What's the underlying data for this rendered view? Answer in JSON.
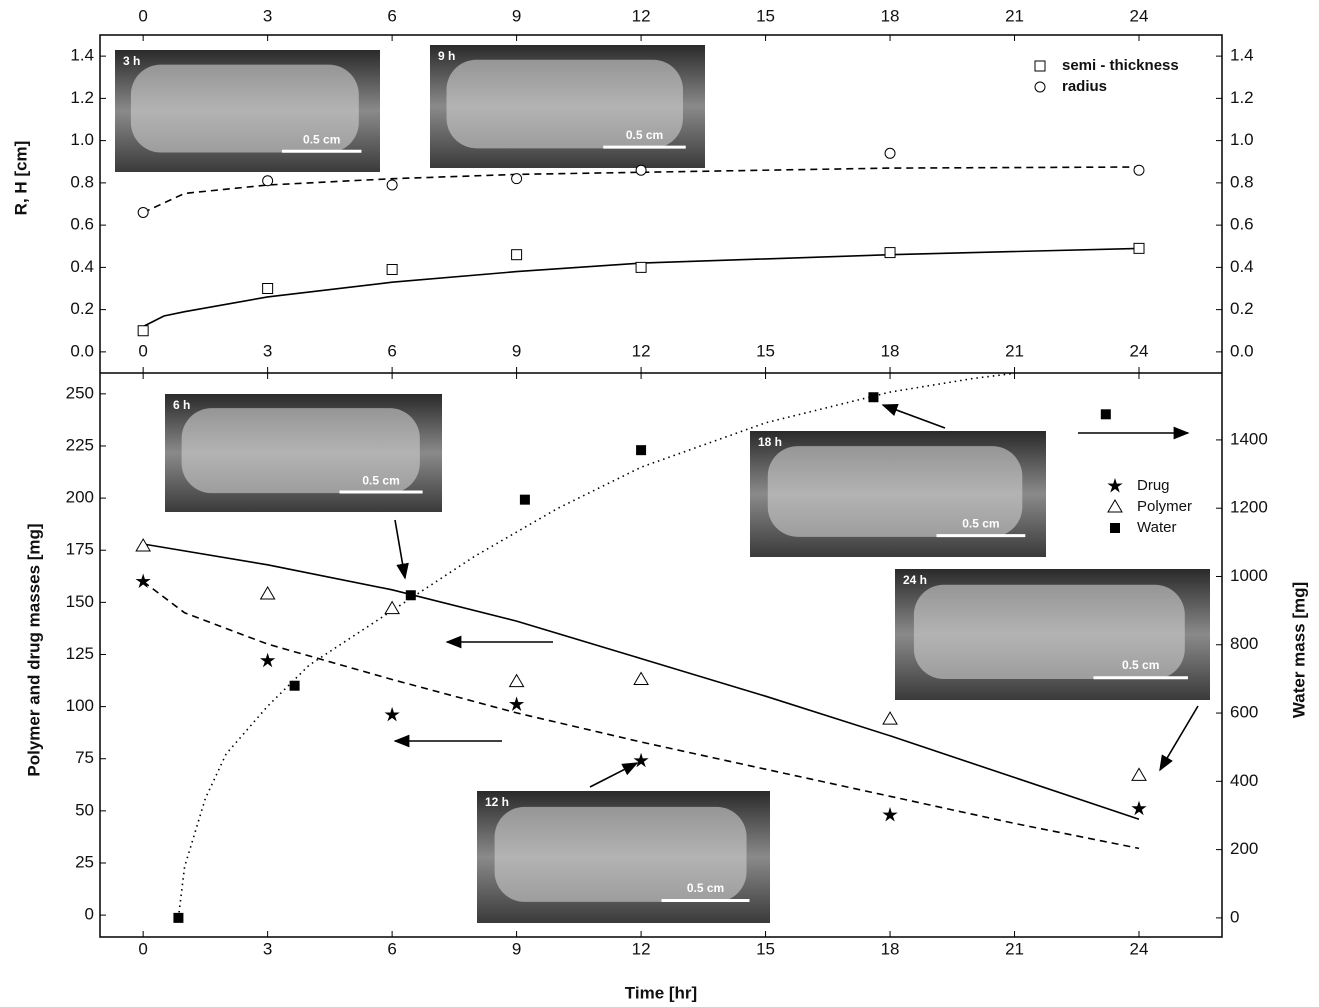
{
  "chart_data": [
    {
      "type": "scatter",
      "ylabel": "R, H [cm]",
      "xlim": [
        -1.04,
        26
      ],
      "xticks": [
        0,
        3,
        6,
        9,
        12,
        15,
        18,
        21,
        24
      ],
      "ylim": [
        -0.1,
        1.5
      ],
      "yticks": [
        {
          "value": 0,
          "label": "0.0"
        },
        {
          "value": 0.2,
          "label": "0.2"
        },
        {
          "value": 0.4,
          "label": "0.4"
        },
        {
          "value": 0.6,
          "label": "0.6"
        },
        {
          "value": 0.8,
          "label": "0.8"
        },
        {
          "value": 1,
          "label": "1.0"
        },
        {
          "value": 1.2,
          "label": "1.2"
        },
        {
          "value": 1.4,
          "label": "1.4"
        }
      ],
      "legend": "top-right",
      "series": [
        {
          "name": "semi - thickness",
          "marker": "square-open",
          "color": "#000",
          "x": [
            0,
            3,
            6,
            9,
            12,
            18,
            24
          ],
          "values": [
            0.1,
            0.3,
            0.39,
            0.46,
            0.4,
            0.47,
            0.49
          ]
        },
        {
          "name": "radius",
          "marker": "circle-open",
          "color": "#000",
          "x": [
            0,
            3,
            6,
            9,
            12,
            18,
            24
          ],
          "values": [
            0.66,
            0.81,
            0.79,
            0.82,
            0.86,
            0.94,
            0.86
          ]
        }
      ],
      "fits": [
        {
          "style": "solid",
          "x": [
            0,
            0.5,
            1,
            3,
            6,
            9,
            12,
            18,
            24
          ],
          "values": [
            0.12,
            0.17,
            0.19,
            0.26,
            0.33,
            0.38,
            0.42,
            0.46,
            0.49
          ]
        },
        {
          "style": "dashed",
          "x": [
            0,
            1,
            3,
            6,
            9,
            12,
            18,
            24
          ],
          "values": [
            0.66,
            0.75,
            0.79,
            0.82,
            0.84,
            0.85,
            0.87,
            0.875
          ]
        }
      ],
      "insets": [
        {
          "label": "3 h",
          "scale": "0.5 cm"
        },
        {
          "label": "9 h",
          "scale": "0.5 cm"
        }
      ]
    },
    {
      "type": "scatter",
      "ylabel": "Polymer and drug masses [mg]",
      "y2label": "Water mass [mg]",
      "xlabel": "Time [hr]",
      "xlim": [
        -1.04,
        26
      ],
      "xticks": [
        0,
        3,
        6,
        9,
        12,
        15,
        18,
        21,
        24
      ],
      "ylim": [
        -10.5,
        260
      ],
      "yticks": [
        0,
        25,
        50,
        75,
        100,
        125,
        150,
        175,
        200,
        225,
        250
      ],
      "y2lim": [
        -56,
        1596
      ],
      "y2ticks": [
        0,
        200,
        400,
        600,
        800,
        1000,
        1200,
        1400
      ],
      "legend": "middle-right",
      "series": [
        {
          "name": "Drug",
          "marker": "star",
          "color": "#000",
          "x": [
            0,
            3,
            6,
            9,
            12,
            18,
            24
          ],
          "values": [
            160,
            122,
            96,
            101,
            74,
            48,
            51
          ]
        },
        {
          "name": "Polymer",
          "marker": "triangle-open",
          "color": "#000",
          "x": [
            0,
            3,
            6,
            9,
            12,
            18,
            24
          ],
          "values": [
            177,
            154,
            147,
            112,
            113,
            94,
            67
          ]
        },
        {
          "name": "Water",
          "marker": "square-filled",
          "color": "#000",
          "axis": "y2",
          "x": [
            0.85,
            3.65,
            6.45,
            9.2,
            12,
            17.6,
            23.2
          ],
          "values": [
            0,
            680,
            945,
            1225,
            1370,
            1525,
            1475
          ]
        }
      ],
      "fits": [
        {
          "style": "solid",
          "x": [
            0,
            3,
            6,
            9,
            12,
            15,
            18,
            21,
            24
          ],
          "values": [
            178,
            168,
            156,
            141,
            123,
            105,
            86,
            66,
            46
          ]
        },
        {
          "style": "dashed",
          "x": [
            0,
            1,
            3,
            6,
            9,
            12,
            15,
            18,
            21,
            24
          ],
          "values": [
            160,
            145,
            130,
            113,
            97,
            83,
            70,
            57,
            44,
            32
          ]
        },
        {
          "style": "dotted",
          "axis": "y2",
          "x": [
            0.85,
            1,
            1.5,
            2,
            3,
            4,
            6,
            8,
            10,
            12,
            15,
            18,
            20,
            21
          ],
          "values": [
            0,
            150,
            350,
            480,
            620,
            740,
            900,
            1060,
            1200,
            1320,
            1450,
            1540,
            1580,
            1595
          ]
        }
      ],
      "insets": [
        {
          "label": "6 h",
          "scale": "0.5 cm"
        },
        {
          "label": "18 h",
          "scale": "0.5 cm"
        },
        {
          "label": "24 h",
          "scale": "0.5 cm"
        },
        {
          "label": "12 h",
          "scale": "0.5 cm"
        }
      ]
    }
  ]
}
